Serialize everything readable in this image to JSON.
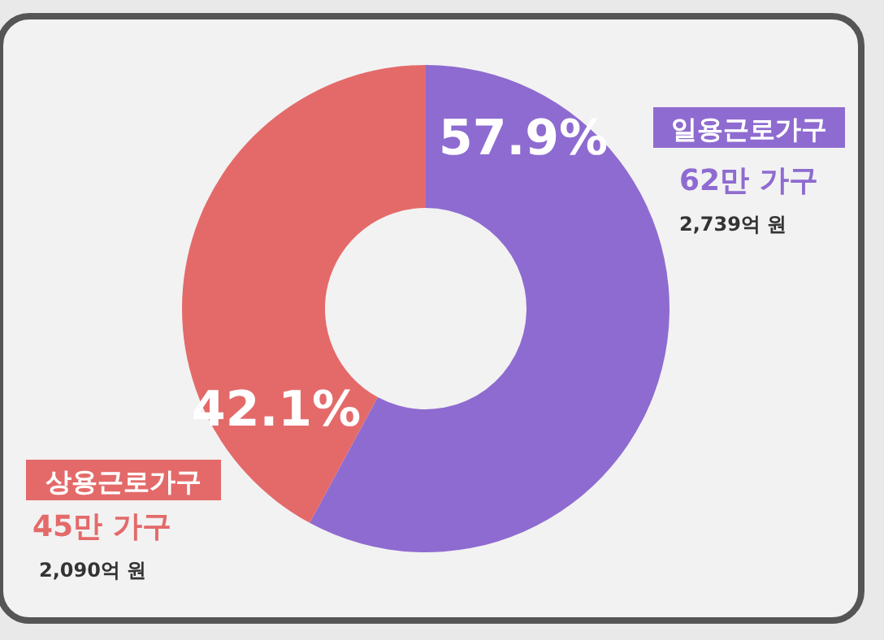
{
  "chart_data": {
    "type": "donut",
    "categories": [
      "일용근로가구",
      "상용근로가구"
    ],
    "values": [
      57.9,
      42.1
    ],
    "colors": [
      "#8e6bd0",
      "#e46a6a"
    ],
    "value_labels": [
      "57.9%",
      "42.1%"
    ],
    "annotations": [
      "62만 가구",
      "2,739억 원",
      "45만 가구",
      "2,090억 원"
    ]
  }
}
